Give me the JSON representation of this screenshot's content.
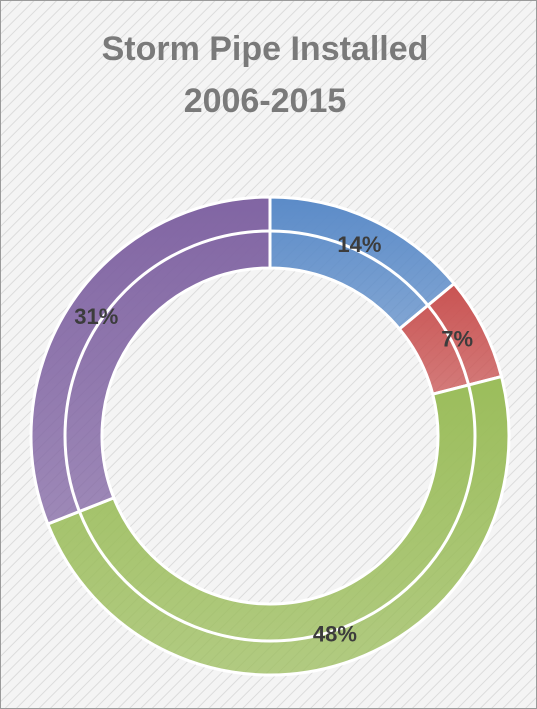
{
  "chart_data": {
    "type": "doughnut",
    "title_lines": [
      "Storm Pipe Installed",
      "2006-2015"
    ],
    "values": [
      14,
      7,
      48,
      31
    ],
    "value_labels": [
      "14%",
      "7%",
      "48%",
      "31%"
    ],
    "colors": [
      "#5b8bc8",
      "#c95352",
      "#9bbd5b",
      "#8165a3"
    ]
  }
}
